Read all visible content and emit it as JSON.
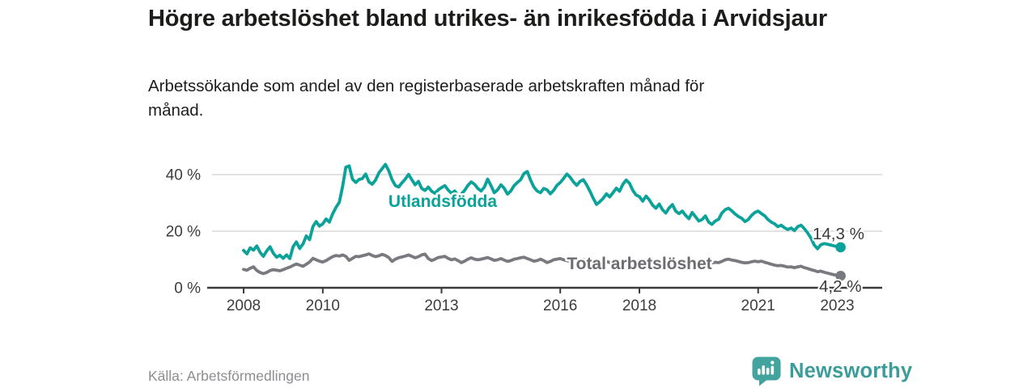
{
  "header": {
    "title": "Högre arbetslöshet bland utrikes- än inrikesfödda i Arvidsjaur",
    "subtitle": "Arbetssökande som andel av den registerbaserade arbetskraften månad för månad."
  },
  "chart_data": {
    "type": "line",
    "x_start": "2008-01",
    "x_end": "2023-02",
    "x_unit": "month",
    "x_ticks": [
      2008,
      2010,
      2013,
      2016,
      2018,
      2021,
      2023
    ],
    "y_ticks": [
      {
        "value": 0,
        "label": "0 %"
      },
      {
        "value": 20,
        "label": "20 %"
      },
      {
        "value": 40,
        "label": "40 %"
      }
    ],
    "ylim": [
      0,
      45
    ],
    "grid": "horizontal",
    "legend_position": "inline-labels",
    "series": [
      {
        "name": "Utlandsfödda",
        "color": "#0ba29a",
        "end_label": "14,3 %",
        "end_value": 14.3,
        "values": [
          13.2,
          12.0,
          14.1,
          13.3,
          14.8,
          12.5,
          11.1,
          13.0,
          14.5,
          12.2,
          10.8,
          11.5,
          10.4,
          11.6,
          10.3,
          14.5,
          16.2,
          13.9,
          15.5,
          18.3,
          17.0,
          21.6,
          23.4,
          21.8,
          22.6,
          24.3,
          23.2,
          26.1,
          28.4,
          30.2,
          35.8,
          42.6,
          43.1,
          38.4,
          37.2,
          38.3,
          38.6,
          40.2,
          37.4,
          36.6,
          38.1,
          40.6,
          42.1,
          43.6,
          41.4,
          38.2,
          36.1,
          35.6,
          37.1,
          38.4,
          40.1,
          38.2,
          36.4,
          37.6,
          35.1,
          34.4,
          35.6,
          34.1,
          33.4,
          34.6,
          35.4,
          36.1,
          34.6,
          33.4,
          34.2,
          32.6,
          33.1,
          34.4,
          36.2,
          37.4,
          36.6,
          35.1,
          34.2,
          35.6,
          38.4,
          36.1,
          33.6,
          34.6,
          36.4,
          35.2,
          33.1,
          34.2,
          36.1,
          37.2,
          38.2,
          40.4,
          41.1,
          38.1,
          35.6,
          34.2,
          33.6,
          35.1,
          34.6,
          33.2,
          34.4,
          36.2,
          37.2,
          38.6,
          40.2,
          39.1,
          37.4,
          36.2,
          37.6,
          38.2,
          36.4,
          34.1,
          31.6,
          29.5,
          30.4,
          31.6,
          33.2,
          32.1,
          33.6,
          35.2,
          34.1,
          36.6,
          38.1,
          36.9,
          34.4,
          32.8,
          32.2,
          30.6,
          32.4,
          31.1,
          29.2,
          28.1,
          29.6,
          27.6,
          26.4,
          28.2,
          29.4,
          27.1,
          26.2,
          27.1,
          25.6,
          24.4,
          26.6,
          25.1,
          23.6,
          24.1,
          25.4,
          23.2,
          22.4,
          23.6,
          24.2,
          26.4,
          27.6,
          28.1,
          27.2,
          26.1,
          25.2,
          24.6,
          23.4,
          24.1,
          25.6,
          26.6,
          27.1,
          26.2,
          25.4,
          24.1,
          23.2,
          22.6,
          21.6,
          22.1,
          21.2,
          20.6,
          21.1,
          20.2,
          21.6,
          22.1,
          20.9,
          19.4,
          17.6,
          15.1,
          13.8,
          15.2,
          15.6,
          15.4,
          15.1,
          14.8,
          14.6,
          14.3
        ]
      },
      {
        "name": "Total arbetslöshet",
        "color": "#797980",
        "label_color": "#6c6c72",
        "end_label": "4,2 %",
        "end_value": 4.2,
        "values": [
          6.5,
          6.2,
          6.9,
          7.4,
          6.1,
          5.4,
          5.0,
          5.4,
          6.1,
          6.4,
          6.2,
          6.0,
          6.4,
          6.9,
          7.3,
          7.9,
          8.4,
          8.0,
          7.6,
          8.3,
          9.1,
          10.4,
          9.9,
          9.4,
          9.1,
          9.6,
          10.3,
          11.0,
          11.4,
          11.2,
          11.6,
          11.1,
          9.7,
          10.4,
          11.1,
          11.0,
          11.3,
          11.6,
          12.0,
          11.4,
          11.0,
          11.3,
          11.8,
          11.4,
          10.7,
          9.3,
          10.1,
          10.6,
          10.9,
          11.2,
          11.6,
          11.1,
          10.6,
          11.0,
          11.6,
          11.9,
          10.3,
          9.6,
          10.1,
          10.7,
          10.9,
          11.1,
          10.4,
          9.9,
          10.2,
          9.6,
          8.9,
          9.4,
          10.1,
          10.6,
          10.1,
          9.9,
          10.1,
          10.4,
          10.7,
          10.2,
          9.7,
          9.9,
          10.3,
          9.8,
          9.3,
          9.6,
          10.1,
          10.3,
          10.6,
          10.8,
          10.3,
          9.9,
          9.4,
          9.6,
          10.1,
          9.6,
          8.9,
          9.3,
          9.9,
          10.1,
          10.3,
          9.9,
          9.6,
          9.3,
          8.9,
          9.2,
          9.7,
          10.0,
          9.4,
          8.8,
          8.4,
          8.9,
          9.2,
          9.6,
          9.3,
          8.9,
          9.4,
          9.8,
          9.4,
          9.0,
          9.4,
          9.0,
          8.7,
          8.9,
          9.3,
          9.0,
          8.6,
          8.3,
          8.6,
          8.9,
          8.4,
          8.1,
          8.4,
          8.8,
          8.5,
          8.2,
          8.6,
          8.8,
          8.4,
          8.0,
          8.3,
          8.6,
          8.1,
          7.9,
          8.1,
          8.5,
          8.8,
          9.0,
          8.9,
          9.3,
          9.9,
          10.1,
          9.8,
          9.6,
          9.3,
          9.0,
          8.8,
          8.9,
          9.2,
          9.4,
          9.2,
          9.4,
          9.0,
          8.7,
          8.3,
          8.0,
          7.8,
          7.9,
          7.6,
          7.3,
          7.4,
          7.1,
          7.4,
          7.6,
          7.1,
          6.8,
          6.4,
          6.1,
          5.7,
          5.9,
          5.5,
          5.2,
          4.9,
          4.6,
          4.4,
          4.2
        ]
      }
    ]
  },
  "footer": {
    "source": "Källa: Arbetsförmedlingen",
    "brand": "Newsworthy",
    "logo_icon": "bar-chart-speech-bubble-icon"
  },
  "colors": {
    "accent_teal": "#0ba29a",
    "line_gray": "#797980",
    "logo_teal": "#3b9d9a",
    "logo_icon_teal": "#43a39f",
    "axis": "#3b3b3b",
    "grid": "#d9d9d9",
    "tick_text": "#3d3d3d",
    "title_text": "#1c1c1a",
    "muted_text": "#8d8d92"
  }
}
